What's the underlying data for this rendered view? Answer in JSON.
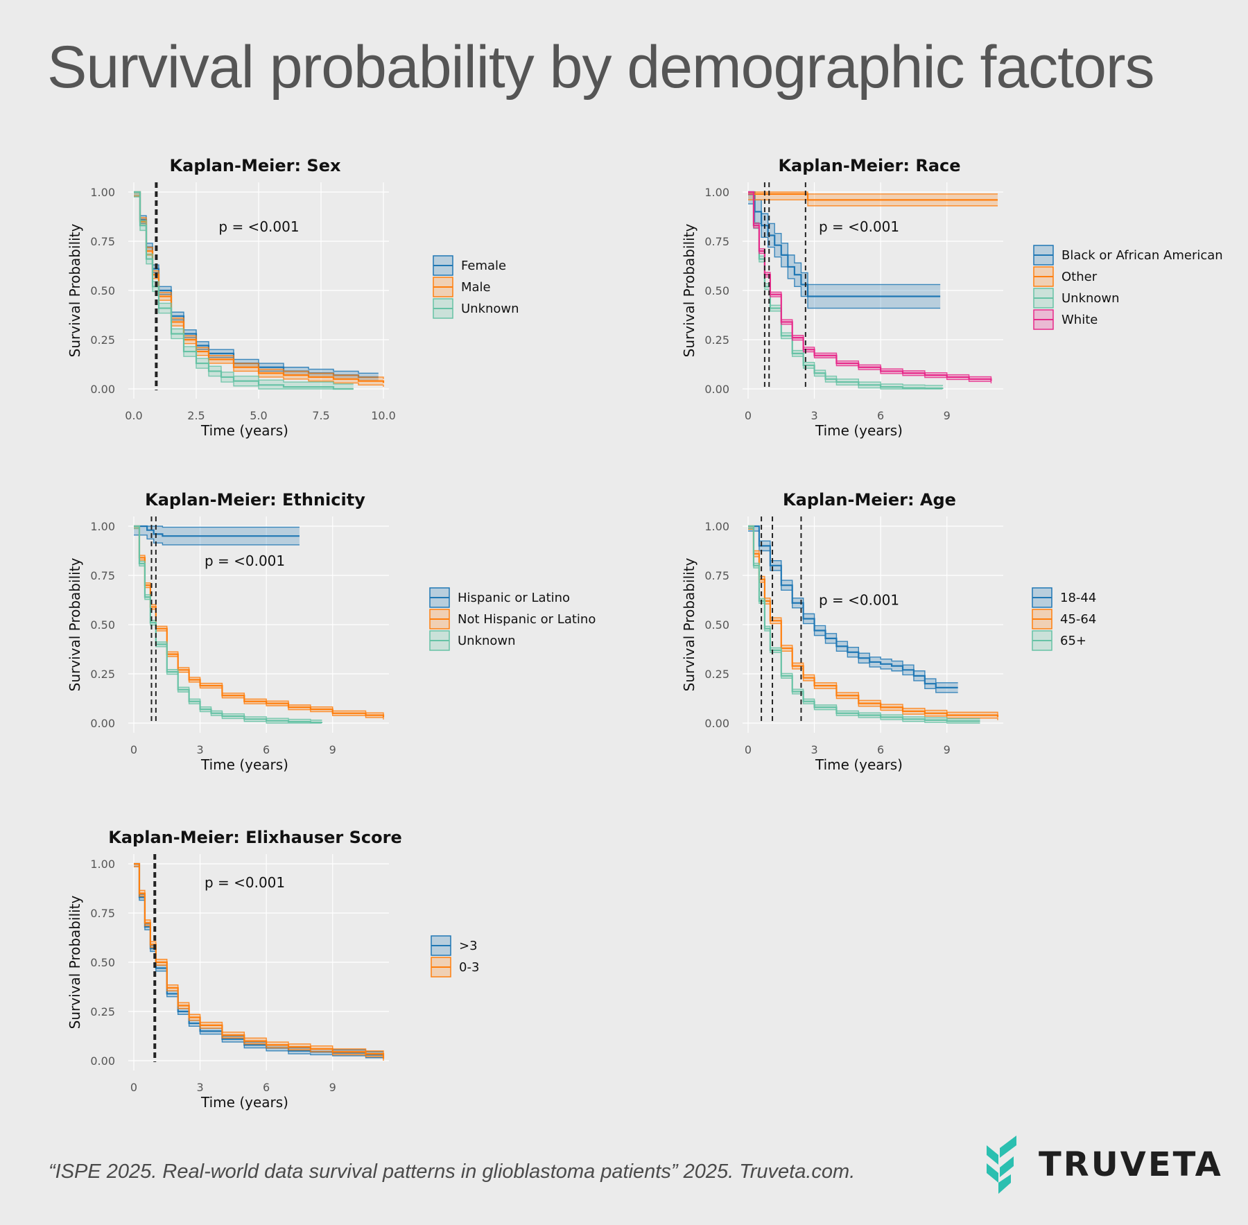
{
  "page": {
    "title": "Survival probability by demographic factors",
    "citation": "“ISPE 2025. Real-world data survival patterns in glioblastoma patients” 2025. Truveta.com.",
    "brand": "TRUVETA",
    "brand_color": "#2bbfb0"
  },
  "colors": {
    "blue": "#1f77b4",
    "orange": "#ff7f0e",
    "teal": "#66c2a5",
    "pink": "#e7298a",
    "grid": "#ffffff"
  },
  "chart_data": [
    {
      "type": "line",
      "title": "Kaplan-Meier: Sex",
      "xlabel": "Time (years)",
      "ylabel": "Survival Probability",
      "xlim": [
        0,
        10
      ],
      "ylim": [
        0,
        1
      ],
      "xticks": [
        0,
        2.5,
        5,
        7.5,
        10
      ],
      "xtick_labels": [
        "0.0",
        "2.5",
        "5.0",
        "7.5",
        "10.0"
      ],
      "yticks": [
        0,
        0.25,
        0.5,
        0.75,
        1
      ],
      "ytick_labels": [
        "0.00",
        "0.25",
        "0.50",
        "0.75",
        "1.00"
      ],
      "annotation": "p = <0.001",
      "annotation_at": [
        3.4,
        0.8
      ],
      "median_lines": [
        {
          "x": 0.9,
          "style": "thick"
        }
      ],
      "legend": "right",
      "grid": true,
      "series": [
        {
          "name": "Female",
          "color": "blue",
          "band": 0.02,
          "x": [
            0,
            0.25,
            0.5,
            0.75,
            1,
            1.5,
            2,
            2.5,
            3,
            4,
            5,
            6,
            7,
            8,
            9,
            9.8
          ],
          "y": [
            1,
            0.86,
            0.72,
            0.61,
            0.5,
            0.37,
            0.28,
            0.22,
            0.18,
            0.13,
            0.11,
            0.09,
            0.08,
            0.07,
            0.06,
            0.06
          ]
        },
        {
          "name": "Male",
          "color": "orange",
          "band": 0.02,
          "x": [
            0,
            0.25,
            0.5,
            0.75,
            1,
            1.5,
            2,
            2.5,
            3,
            4,
            5,
            6,
            7,
            8,
            9,
            10
          ],
          "y": [
            1,
            0.85,
            0.7,
            0.58,
            0.47,
            0.34,
            0.25,
            0.19,
            0.15,
            0.11,
            0.08,
            0.07,
            0.06,
            0.05,
            0.04,
            0.03
          ]
        },
        {
          "name": "Unknown",
          "color": "teal",
          "band": 0.025,
          "x": [
            0,
            0.25,
            0.5,
            0.75,
            1,
            1.5,
            2,
            2.5,
            3,
            3.5,
            4,
            5,
            6,
            7,
            8,
            8.8
          ],
          "y": [
            1,
            0.83,
            0.66,
            0.52,
            0.41,
            0.28,
            0.19,
            0.13,
            0.09,
            0.06,
            0.04,
            0.02,
            0.01,
            0.01,
            0.0,
            0.0
          ]
        }
      ]
    },
    {
      "type": "line",
      "title": "Kaplan-Meier: Race",
      "xlabel": "Time (years)",
      "ylabel": "Survival Probability",
      "xlim": [
        0,
        11.3
      ],
      "ylim": [
        0,
        1
      ],
      "xticks": [
        0,
        3,
        6,
        9
      ],
      "xtick_labels": [
        "0",
        "3",
        "6",
        "9"
      ],
      "yticks": [
        0,
        0.25,
        0.5,
        0.75,
        1
      ],
      "ytick_labels": [
        "0.00",
        "0.25",
        "0.50",
        "0.75",
        "1.00"
      ],
      "annotation": "p = <0.001",
      "annotation_at": [
        3.2,
        0.8
      ],
      "median_lines": [
        {
          "x": 0.75,
          "style": "dashed"
        },
        {
          "x": 0.95,
          "style": "dashed"
        },
        {
          "x": 2.6,
          "style": "dashed"
        }
      ],
      "legend": "right",
      "grid": true,
      "series": [
        {
          "name": "Black or African American",
          "color": "blue",
          "band": 0.06,
          "x": [
            0,
            0.3,
            0.6,
            0.9,
            1.2,
            1.5,
            1.8,
            2.1,
            2.4,
            2.7,
            8.7
          ],
          "y": [
            1,
            0.9,
            0.83,
            0.78,
            0.73,
            0.68,
            0.62,
            0.58,
            0.53,
            0.47,
            0.47
          ]
        },
        {
          "name": "Other",
          "color": "orange",
          "band": 0.03,
          "x": [
            0,
            2.7,
            11.3
          ],
          "y": [
            0.99,
            0.96,
            0.96
          ]
        },
        {
          "name": "Unknown",
          "color": "teal",
          "band": 0.015,
          "x": [
            0,
            0.25,
            0.5,
            0.75,
            1,
            1.5,
            2,
            2.5,
            3,
            3.5,
            4,
            5,
            6,
            7,
            8,
            8.8
          ],
          "y": [
            1,
            0.83,
            0.66,
            0.52,
            0.41,
            0.27,
            0.18,
            0.12,
            0.08,
            0.05,
            0.035,
            0.02,
            0.01,
            0.005,
            0.003,
            0.0
          ]
        },
        {
          "name": "White",
          "color": "pink",
          "band": 0.012,
          "x": [
            0,
            0.25,
            0.5,
            0.75,
            1,
            1.5,
            2,
            2.5,
            3,
            4,
            5,
            6,
            7,
            8,
            9,
            10,
            11
          ],
          "y": [
            1,
            0.83,
            0.7,
            0.58,
            0.48,
            0.34,
            0.26,
            0.2,
            0.17,
            0.13,
            0.11,
            0.09,
            0.08,
            0.07,
            0.06,
            0.05,
            0.04
          ]
        }
      ]
    },
    {
      "type": "line",
      "title": "Kaplan-Meier: Ethnicity",
      "xlabel": "Time (years)",
      "ylabel": "Survival Probability",
      "xlim": [
        0,
        11.3
      ],
      "ylim": [
        0,
        1
      ],
      "xticks": [
        0,
        3,
        6,
        9
      ],
      "xtick_labels": [
        "0",
        "3",
        "6",
        "9"
      ],
      "yticks": [
        0,
        0.25,
        0.5,
        0.75,
        1
      ],
      "ytick_labels": [
        "0.00",
        "0.25",
        "0.50",
        "0.75",
        "1.00"
      ],
      "annotation": "p = <0.001",
      "annotation_at": [
        3.2,
        0.8
      ],
      "median_lines": [
        {
          "x": 0.8,
          "style": "dashed"
        },
        {
          "x": 1.0,
          "style": "dashed"
        }
      ],
      "legend": "right",
      "grid": true,
      "series": [
        {
          "name": "Hispanic or Latino",
          "color": "blue",
          "band": 0.045,
          "x": [
            0,
            0.6,
            0.9,
            1.3,
            7.5
          ],
          "y": [
            1,
            0.98,
            0.96,
            0.95,
            0.95
          ]
        },
        {
          "name": "Not Hispanic or Latino",
          "color": "orange",
          "band": 0.012,
          "x": [
            0,
            0.25,
            0.5,
            0.75,
            1,
            1.5,
            2,
            2.5,
            3,
            4,
            5,
            6,
            7,
            8,
            9,
            10.5,
            11.3
          ],
          "y": [
            1,
            0.84,
            0.7,
            0.59,
            0.48,
            0.35,
            0.27,
            0.22,
            0.19,
            0.14,
            0.11,
            0.1,
            0.08,
            0.07,
            0.05,
            0.04,
            0.03
          ]
        },
        {
          "name": "Unknown",
          "color": "teal",
          "band": 0.012,
          "x": [
            0,
            0.25,
            0.5,
            0.75,
            1,
            1.5,
            2,
            2.5,
            3,
            3.5,
            4,
            5,
            6,
            7,
            8,
            8.5
          ],
          "y": [
            1,
            0.81,
            0.64,
            0.51,
            0.4,
            0.26,
            0.17,
            0.11,
            0.07,
            0.05,
            0.035,
            0.02,
            0.012,
            0.007,
            0.003,
            0.0
          ]
        }
      ]
    },
    {
      "type": "line",
      "title": "Kaplan-Meier: Age",
      "xlabel": "Time (years)",
      "ylabel": "Survival Probability",
      "xlim": [
        0,
        11.3
      ],
      "ylim": [
        0,
        1
      ],
      "xticks": [
        0,
        3,
        6,
        9
      ],
      "xtick_labels": [
        "0",
        "3",
        "6",
        "9"
      ],
      "yticks": [
        0,
        0.25,
        0.5,
        0.75,
        1
      ],
      "ytick_labels": [
        "0.00",
        "0.25",
        "0.50",
        "0.75",
        "1.00"
      ],
      "annotation": "p = <0.001",
      "annotation_at": [
        3.2,
        0.6
      ],
      "median_lines": [
        {
          "x": 0.6,
          "style": "dashed"
        },
        {
          "x": 1.1,
          "style": "dashed"
        },
        {
          "x": 2.4,
          "style": "dashed"
        }
      ],
      "legend": "right",
      "grid": true,
      "series": [
        {
          "name": "18-44",
          "color": "blue",
          "band": 0.025,
          "x": [
            0,
            0.5,
            1,
            1.5,
            2,
            2.5,
            3,
            3.5,
            4,
            4.5,
            5,
            5.5,
            6,
            6.5,
            7,
            7.5,
            8,
            8.5,
            9,
            9.5
          ],
          "y": [
            1,
            0.9,
            0.8,
            0.7,
            0.61,
            0.53,
            0.47,
            0.43,
            0.39,
            0.36,
            0.33,
            0.31,
            0.3,
            0.29,
            0.27,
            0.24,
            0.2,
            0.18,
            0.18,
            0.18
          ]
        },
        {
          "name": "45-64",
          "color": "orange",
          "band": 0.015,
          "x": [
            0,
            0.25,
            0.5,
            0.75,
            1,
            1.5,
            2,
            2.5,
            3,
            4,
            5,
            6,
            7,
            8,
            9,
            10,
            11.3
          ],
          "y": [
            1,
            0.86,
            0.73,
            0.62,
            0.52,
            0.38,
            0.29,
            0.23,
            0.19,
            0.14,
            0.1,
            0.08,
            0.06,
            0.05,
            0.04,
            0.04,
            0.03
          ]
        },
        {
          "name": "65+",
          "color": "teal",
          "band": 0.012,
          "x": [
            0,
            0.25,
            0.5,
            0.75,
            1,
            1.5,
            2,
            2.5,
            3,
            4,
            5,
            6,
            7,
            8,
            9,
            10.5
          ],
          "y": [
            1,
            0.8,
            0.62,
            0.48,
            0.37,
            0.24,
            0.16,
            0.11,
            0.08,
            0.05,
            0.04,
            0.03,
            0.02,
            0.015,
            0.01,
            0.01
          ]
        }
      ]
    },
    {
      "type": "line",
      "title": "Kaplan-Meier: Elixhauser Score",
      "xlabel": "Time (years)",
      "ylabel": "Survival Probability",
      "xlim": [
        0,
        11.3
      ],
      "ylim": [
        0,
        1
      ],
      "xticks": [
        0,
        3,
        6,
        9
      ],
      "xtick_labels": [
        "0",
        "3",
        "6",
        "9"
      ],
      "yticks": [
        0,
        0.25,
        0.5,
        0.75,
        1
      ],
      "ytick_labels": [
        "0.00",
        "0.25",
        "0.50",
        "0.75",
        "1.00"
      ],
      "annotation": "p = <0.001",
      "annotation_at": [
        3.2,
        0.88
      ],
      "median_lines": [
        {
          "x": 0.95,
          "style": "thick"
        }
      ],
      "legend": "right",
      "grid": true,
      "series": [
        {
          "name": ">3",
          "color": "blue",
          "band": 0.015,
          "x": [
            0,
            0.25,
            0.5,
            0.75,
            1,
            1.5,
            2,
            2.5,
            3,
            4,
            5,
            6,
            7,
            8,
            9,
            10.5,
            11.3
          ],
          "y": [
            1,
            0.83,
            0.68,
            0.57,
            0.47,
            0.34,
            0.25,
            0.19,
            0.15,
            0.11,
            0.08,
            0.065,
            0.05,
            0.045,
            0.04,
            0.03,
            0.03
          ]
        },
        {
          "name": "0-3",
          "color": "orange",
          "band": 0.015,
          "x": [
            0,
            0.25,
            0.5,
            0.75,
            1,
            1.5,
            2,
            2.5,
            3,
            4,
            5,
            6,
            7,
            8,
            9,
            10.5,
            11.3
          ],
          "y": [
            1,
            0.85,
            0.7,
            0.59,
            0.5,
            0.37,
            0.28,
            0.22,
            0.18,
            0.13,
            0.1,
            0.08,
            0.07,
            0.06,
            0.045,
            0.035,
            0.01
          ]
        }
      ]
    }
  ]
}
